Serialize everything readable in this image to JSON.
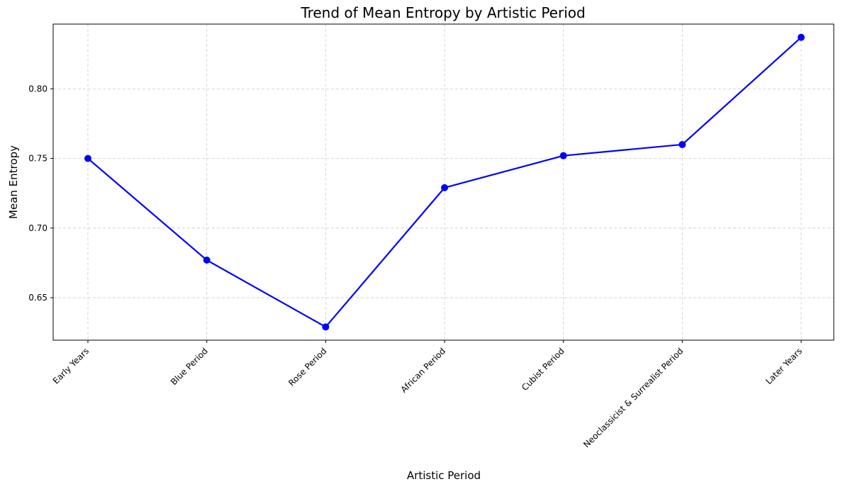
{
  "chart_data": {
    "type": "line",
    "title": "Trend of Mean Entropy by Artistic Period",
    "xlabel": "Artistic Period",
    "ylabel": "Mean Entropy",
    "categories": [
      "Early Years",
      "Blue Period",
      "Rose Period",
      "African Period",
      "Cubist Period",
      "Neoclassicist & Surrealist Period",
      "Later Years"
    ],
    "series": [
      {
        "values": [
          0.75,
          0.677,
          0.629,
          0.729,
          0.752,
          0.76,
          0.837
        ]
      }
    ],
    "y_ticks": [
      0.65,
      0.7,
      0.75,
      0.8
    ],
    "y_tick_labels": [
      "0.65",
      "0.70",
      "0.75",
      "0.80"
    ],
    "ylim": [
      0.6195,
      0.8465
    ],
    "grid": true,
    "legend": "none",
    "colors": {
      "line": "#0000ff",
      "marker": "#0000ff",
      "grid": "#cccccc",
      "axes": "#000000"
    }
  }
}
